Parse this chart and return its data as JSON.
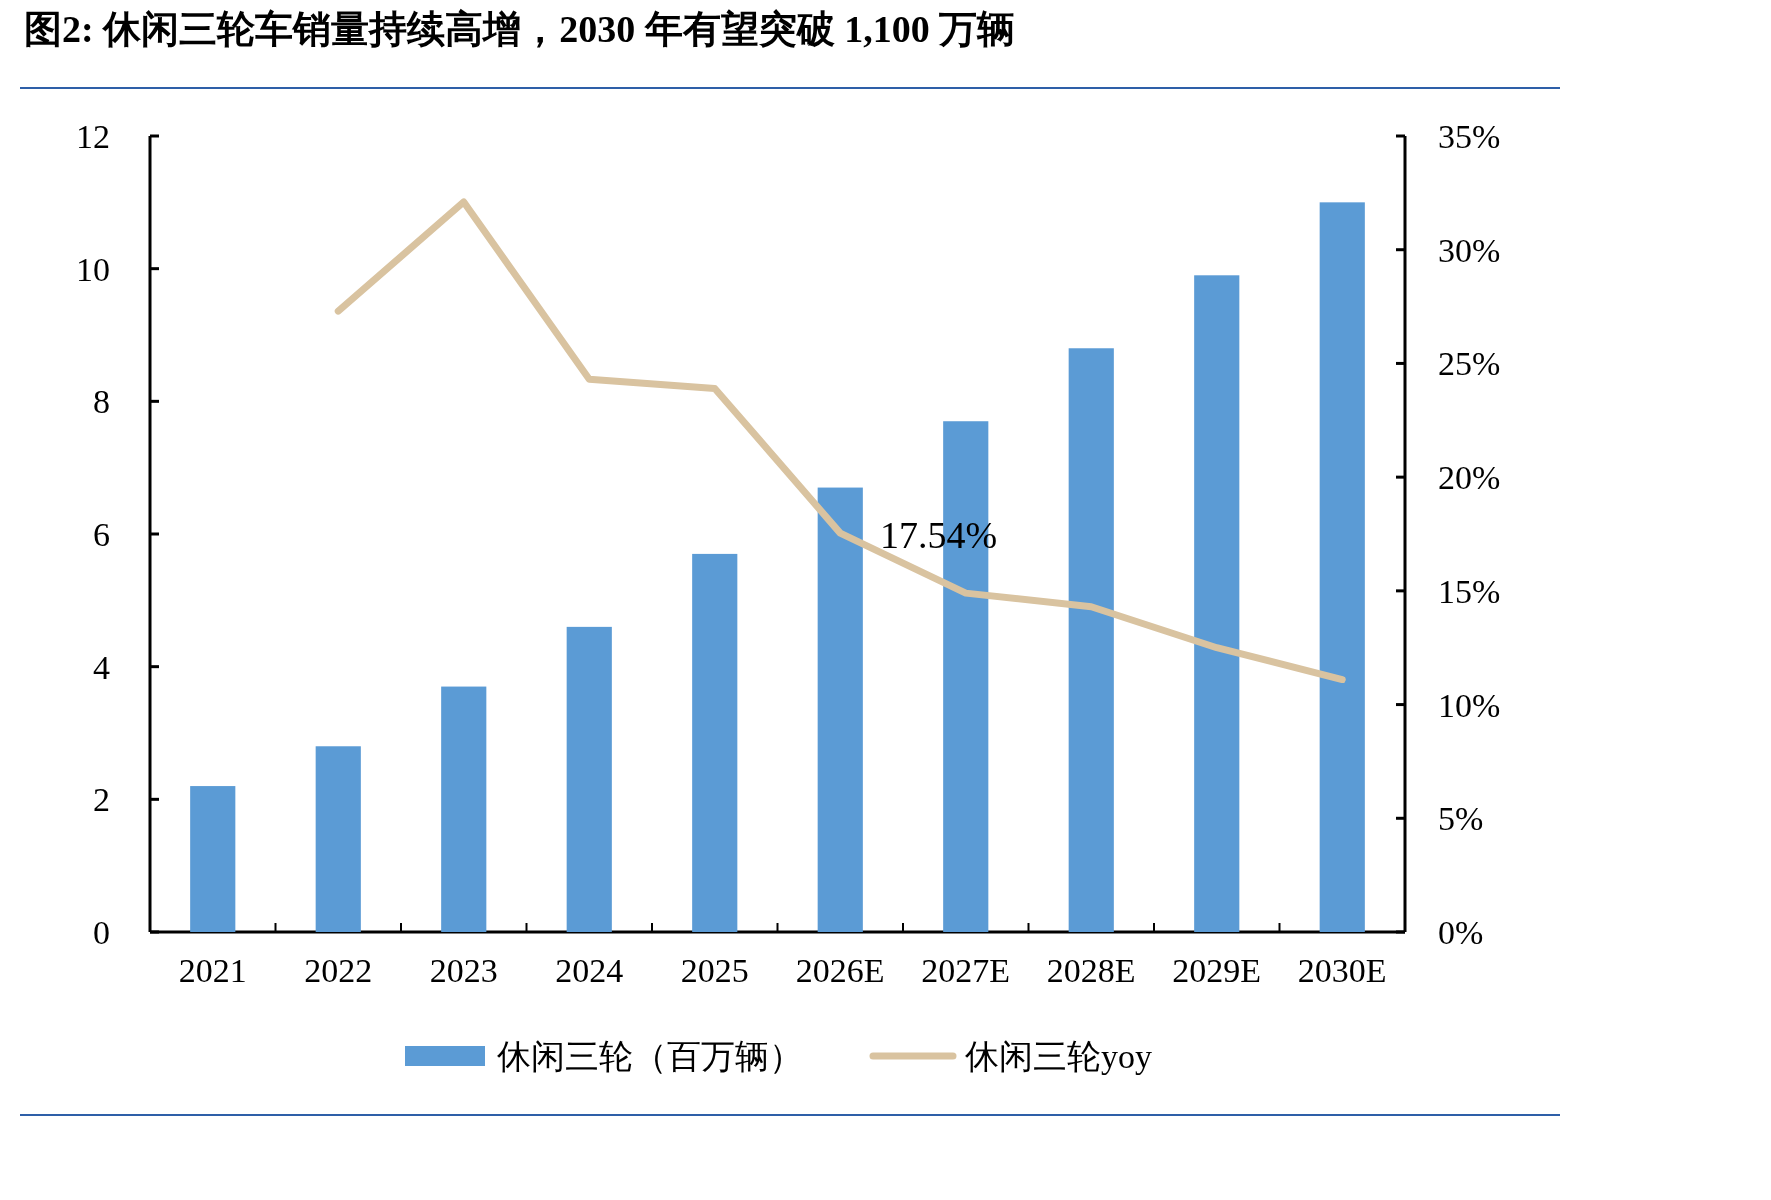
{
  "chart_data": {
    "type": "bar",
    "title": "图2: 休闲三轮车销量持续高增，2030 年有望突破 1,100 万辆",
    "categories": [
      "2021",
      "2022",
      "2023",
      "2024",
      "2025",
      "2026E",
      "2027E",
      "2028E",
      "2029E",
      "2030E"
    ],
    "series": [
      {
        "name": "休闲三轮（百万辆）",
        "type": "bar",
        "color": "#5b9bd5",
        "values": [
          2.2,
          2.8,
          3.7,
          4.6,
          5.7,
          6.7,
          7.7,
          8.8,
          9.9,
          11.0
        ]
      },
      {
        "name": "休闲三轮yoy",
        "type": "line",
        "axis": "y2",
        "color": "#d9c3a0",
        "values": [
          null,
          27.3,
          32.1,
          24.3,
          23.9,
          17.54,
          14.9,
          14.3,
          12.5,
          11.1
        ]
      }
    ],
    "ylim": [
      0,
      12
    ],
    "yticks": [
      0,
      2,
      4,
      6,
      8,
      10,
      12
    ],
    "y2lim": [
      0,
      35
    ],
    "y2ticks": [
      {
        "value": 0,
        "label": "0%"
      },
      {
        "value": 5,
        "label": "5%"
      },
      {
        "value": 10,
        "label": "10%"
      },
      {
        "value": 15,
        "label": "15%"
      },
      {
        "value": 20,
        "label": "20%"
      },
      {
        "value": 25,
        "label": "25%"
      },
      {
        "value": 30,
        "label": "30%"
      },
      {
        "value": 35,
        "label": "35%"
      }
    ],
    "annotations": [
      "17.54%"
    ],
    "legend": "bottom",
    "marker": "none",
    "line_style": "solid",
    "grid": false
  }
}
